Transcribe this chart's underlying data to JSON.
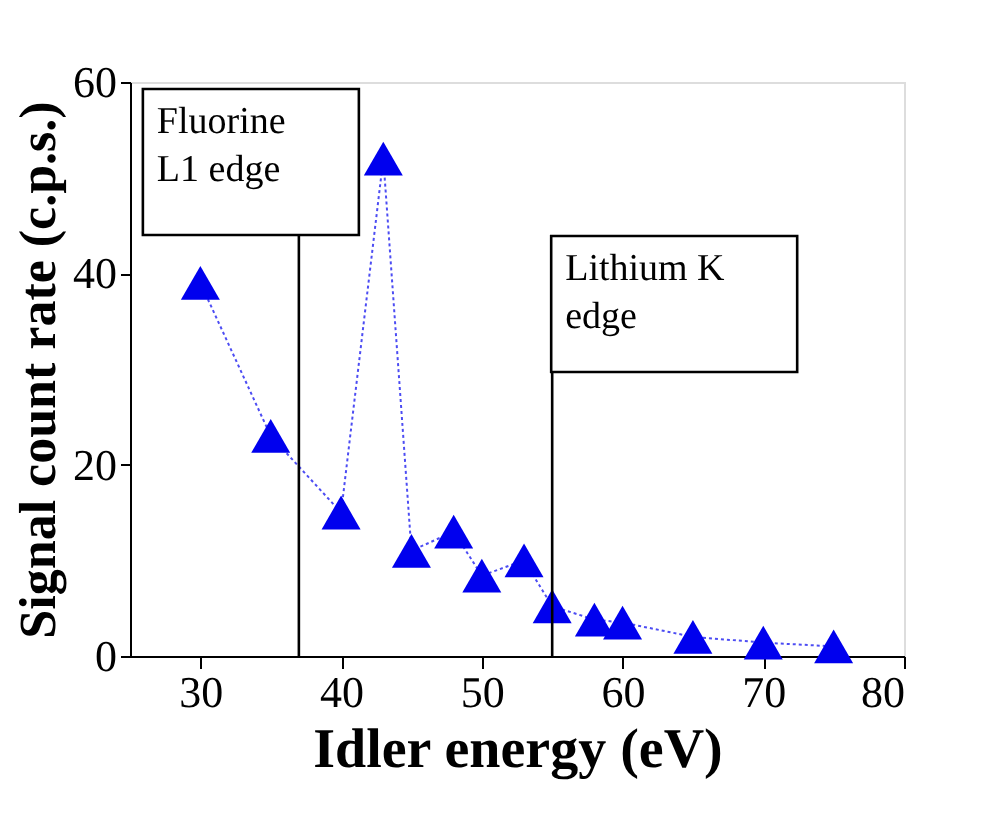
{
  "chart_data": {
    "type": "line",
    "xlabel": "Idler energy (eV)",
    "ylabel": "Signal count rate (c.p.s.)",
    "x": [
      30,
      35,
      40,
      43,
      45,
      48,
      50,
      53,
      55,
      58,
      60,
      65,
      70,
      75
    ],
    "series": [
      {
        "color": "#0000ee",
        "values": [
          39,
          23,
          15,
          52,
          11,
          13,
          8.4,
          10,
          5.2,
          3.8,
          3.5,
          2,
          1.4,
          1
        ]
      }
    ],
    "marker": "triangle",
    "line_style": "dotted",
    "grid": false,
    "xlim": [
      25,
      80
    ],
    "xticks": [
      30,
      40,
      50,
      60,
      70,
      80
    ],
    "ylim": [
      0,
      60
    ],
    "yticks": [
      0,
      20,
      40,
      60
    ],
    "ref_lines": [
      {
        "axis": "x",
        "value": 37,
        "label": "Fluorine\nL1 edge"
      },
      {
        "axis": "x",
        "value": 55,
        "label": "Lithium K\nedge"
      }
    ]
  }
}
